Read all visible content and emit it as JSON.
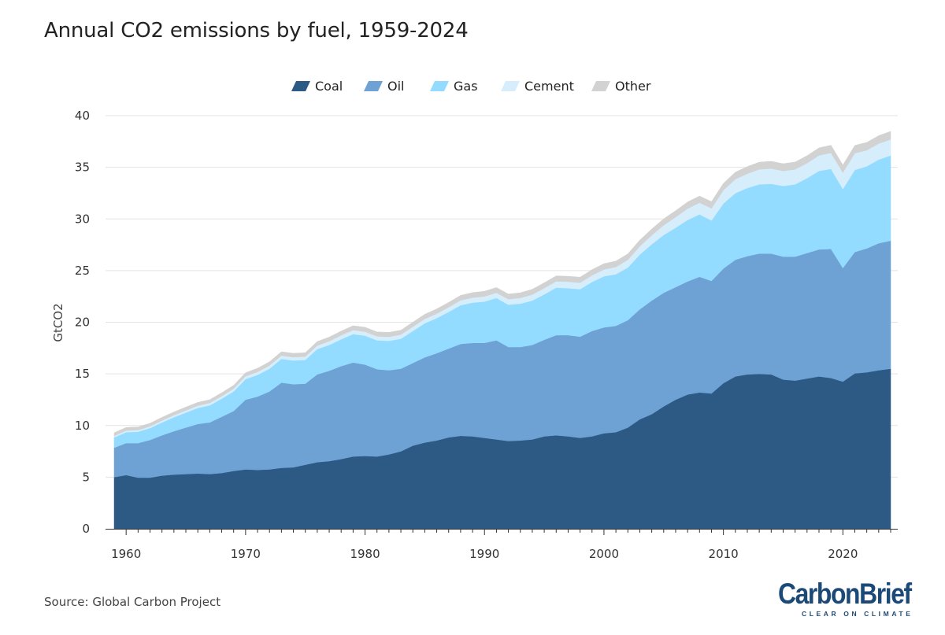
{
  "chart_data": {
    "type": "area",
    "stacked": true,
    "title": "Annual CO2 emissions by fuel, 1959-2024",
    "ylabel": "GtCO2",
    "xlabel": "",
    "ylim": [
      0,
      40
    ],
    "xlim": [
      1959,
      2024
    ],
    "yticks": [
      0,
      5,
      10,
      15,
      20,
      25,
      30,
      35,
      40
    ],
    "xticks": [
      1960,
      1970,
      1980,
      1990,
      2000,
      2010,
      2020
    ],
    "grid": true,
    "legend_position": "top-center",
    "years": [
      1959,
      1960,
      1961,
      1962,
      1963,
      1964,
      1965,
      1966,
      1967,
      1968,
      1969,
      1970,
      1971,
      1972,
      1973,
      1974,
      1975,
      1976,
      1977,
      1978,
      1979,
      1980,
      1981,
      1982,
      1983,
      1984,
      1985,
      1986,
      1987,
      1988,
      1989,
      1990,
      1991,
      1992,
      1993,
      1994,
      1995,
      1996,
      1997,
      1998,
      1999,
      2000,
      2001,
      2002,
      2003,
      2004,
      2005,
      2006,
      2007,
      2008,
      2009,
      2010,
      2011,
      2012,
      2013,
      2014,
      2015,
      2016,
      2017,
      2018,
      2019,
      2020,
      2021,
      2022,
      2023,
      2024
    ],
    "series": [
      {
        "name": "Coal",
        "color": "#2c5a85",
        "values": [
          5.0,
          5.2,
          4.95,
          4.95,
          5.15,
          5.25,
          5.3,
          5.35,
          5.3,
          5.4,
          5.6,
          5.75,
          5.7,
          5.75,
          5.9,
          5.95,
          6.2,
          6.45,
          6.55,
          6.75,
          7.0,
          7.05,
          7.0,
          7.2,
          7.5,
          8.05,
          8.35,
          8.55,
          8.85,
          9.0,
          8.95,
          8.8,
          8.65,
          8.5,
          8.55,
          8.65,
          8.95,
          9.05,
          8.95,
          8.8,
          8.95,
          9.25,
          9.35,
          9.8,
          10.6,
          11.1,
          11.85,
          12.5,
          13.0,
          13.2,
          13.1,
          14.1,
          14.75,
          14.95,
          15.0,
          14.95,
          14.45,
          14.35,
          14.55,
          14.75,
          14.6,
          14.25,
          15.05,
          15.15,
          15.35,
          15.5
        ]
      },
      {
        "name": "Oil",
        "color": "#6fa2d4",
        "values": [
          2.85,
          3.1,
          3.35,
          3.65,
          3.9,
          4.2,
          4.5,
          4.8,
          5.0,
          5.45,
          5.8,
          6.75,
          7.1,
          7.55,
          8.25,
          8.05,
          7.85,
          8.5,
          8.75,
          9.0,
          9.1,
          8.85,
          8.45,
          8.15,
          8.0,
          8.0,
          8.25,
          8.45,
          8.6,
          8.9,
          9.05,
          9.2,
          9.6,
          9.1,
          9.05,
          9.15,
          9.35,
          9.7,
          9.8,
          9.8,
          10.2,
          10.25,
          10.3,
          10.4,
          10.65,
          11.0,
          11.0,
          10.9,
          10.95,
          11.2,
          10.9,
          11.1,
          11.3,
          11.45,
          11.65,
          11.7,
          11.9,
          12.0,
          12.15,
          12.3,
          12.5,
          11.0,
          11.75,
          12.0,
          12.3,
          12.4
        ]
      },
      {
        "name": "Gas",
        "color": "#94dcff",
        "values": [
          1.0,
          1.05,
          1.1,
          1.15,
          1.25,
          1.35,
          1.45,
          1.55,
          1.65,
          1.75,
          1.9,
          2.0,
          2.1,
          2.2,
          2.3,
          2.3,
          2.3,
          2.45,
          2.5,
          2.6,
          2.75,
          2.8,
          2.8,
          2.85,
          2.9,
          3.1,
          3.3,
          3.4,
          3.55,
          3.75,
          3.9,
          4.0,
          4.1,
          4.1,
          4.2,
          4.3,
          4.4,
          4.6,
          4.55,
          4.6,
          4.75,
          4.95,
          5.0,
          5.1,
          5.3,
          5.45,
          5.6,
          5.75,
          5.95,
          6.05,
          5.85,
          6.3,
          6.45,
          6.6,
          6.7,
          6.75,
          6.85,
          7.0,
          7.25,
          7.6,
          7.75,
          7.65,
          7.95,
          7.95,
          8.1,
          8.25
        ]
      },
      {
        "name": "Cement",
        "color": "#d6eefc",
        "values": [
          0.15,
          0.16,
          0.16,
          0.17,
          0.18,
          0.2,
          0.21,
          0.22,
          0.23,
          0.24,
          0.26,
          0.27,
          0.29,
          0.31,
          0.32,
          0.32,
          0.32,
          0.34,
          0.36,
          0.38,
          0.39,
          0.39,
          0.39,
          0.39,
          0.4,
          0.41,
          0.42,
          0.43,
          0.45,
          0.47,
          0.48,
          0.5,
          0.51,
          0.53,
          0.55,
          0.58,
          0.6,
          0.61,
          0.62,
          0.62,
          0.64,
          0.66,
          0.7,
          0.74,
          0.8,
          0.87,
          0.94,
          1.02,
          1.1,
          1.12,
          1.18,
          1.28,
          1.35,
          1.38,
          1.45,
          1.48,
          1.45,
          1.45,
          1.45,
          1.5,
          1.55,
          1.58,
          1.62,
          1.55,
          1.55,
          1.55
        ]
      },
      {
        "name": "Other",
        "color": "#d2d2d2",
        "values": [
          0.3,
          0.3,
          0.3,
          0.3,
          0.31,
          0.31,
          0.32,
          0.32,
          0.32,
          0.33,
          0.33,
          0.34,
          0.35,
          0.36,
          0.37,
          0.37,
          0.38,
          0.39,
          0.4,
          0.41,
          0.42,
          0.42,
          0.42,
          0.43,
          0.43,
          0.44,
          0.45,
          0.46,
          0.47,
          0.48,
          0.49,
          0.5,
          0.5,
          0.5,
          0.5,
          0.51,
          0.52,
          0.53,
          0.53,
          0.54,
          0.55,
          0.56,
          0.57,
          0.58,
          0.6,
          0.61,
          0.62,
          0.63,
          0.64,
          0.65,
          0.65,
          0.67,
          0.68,
          0.69,
          0.7,
          0.7,
          0.7,
          0.71,
          0.72,
          0.73,
          0.74,
          0.74,
          0.75,
          0.76,
          0.77,
          0.78
        ]
      }
    ]
  },
  "source": "Source: Global Carbon Project",
  "logo": {
    "main": "CarbonBrief",
    "sub": "CLEAR ON CLIMATE"
  }
}
